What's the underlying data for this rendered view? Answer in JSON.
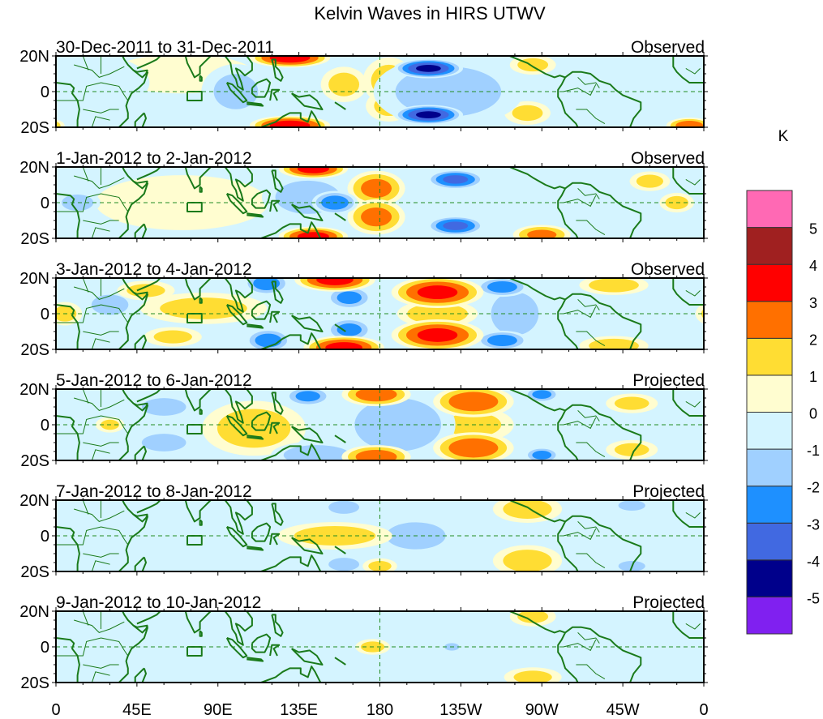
{
  "chart_data": {
    "type": "heatmap",
    "title": "Kelvin Waves in HIRS UTWV",
    "units": "K",
    "xlabel": "",
    "ylabel": "",
    "x_range_deg_east": [
      0,
      360
    ],
    "y_range_deg": [
      -20,
      20
    ],
    "x_ticks": [
      {
        "value": 0,
        "label": "0"
      },
      {
        "value": 45,
        "label": "45E"
      },
      {
        "value": 90,
        "label": "90E"
      },
      {
        "value": 135,
        "label": "135E"
      },
      {
        "value": 180,
        "label": "180"
      },
      {
        "value": 225,
        "label": "135W"
      },
      {
        "value": 270,
        "label": "90W"
      },
      {
        "value": 315,
        "label": "45W"
      },
      {
        "value": 360,
        "label": "0"
      }
    ],
    "y_ticks": [
      {
        "value": 20,
        "label": "20N"
      },
      {
        "value": 0,
        "label": "0"
      },
      {
        "value": -20,
        "label": "20S"
      }
    ],
    "reference_lines": {
      "equator": 0,
      "dateline": 180,
      "style": "dashed",
      "color": "#228B22"
    },
    "coastline_color": "#1a7a1a",
    "colorbar": {
      "label": "K",
      "levels": [
        -5,
        -4,
        -3,
        -2,
        -1,
        0,
        1,
        2,
        3,
        4,
        5
      ],
      "tick_labels": [
        "5",
        "4",
        "3",
        "2",
        "1",
        "0",
        "-1",
        "-2",
        "-3",
        "-4",
        "-5"
      ],
      "colors_low_to_high": [
        "#8020F0",
        "#00008B",
        "#4169E1",
        "#1E90FF",
        "#A0D0FF",
        "#D4F4FF",
        "#FFFDD0",
        "#FFDD33",
        "#FF7000",
        "#FF0000",
        "#A02020",
        "#FF69B4"
      ]
    },
    "panels": [
      {
        "date_range": "30-Dec-2011 to 31-Dec-2011",
        "status": "Observed",
        "anomalies": [
          {
            "lon": 130,
            "lat": 19,
            "value": 3.5,
            "wlon": 14,
            "wlat": 5
          },
          {
            "lon": 130,
            "lat": -19,
            "value": 3.5,
            "wlon": 14,
            "wlat": 5
          },
          {
            "lon": 160,
            "lat": 4,
            "value": 1.3,
            "wlon": 8,
            "wlat": 9
          },
          {
            "lon": 185,
            "lat": 6,
            "value": 1.4,
            "wlon": 9,
            "wlat": 12
          },
          {
            "lon": 185,
            "lat": -8,
            "value": 1.2,
            "wlon": 8,
            "wlat": 8
          },
          {
            "lon": 207,
            "lat": 13,
            "value": -4.1,
            "wlon": 12,
            "wlat": 5
          },
          {
            "lon": 207,
            "lat": -13,
            "value": -4.1,
            "wlon": 12,
            "wlat": 5
          },
          {
            "lon": 225,
            "lat": 0,
            "value": 0.5,
            "wlon": 9,
            "wlat": 6
          },
          {
            "lon": 218,
            "lat": 0,
            "value": -1.5,
            "wlon": 26,
            "wlat": 18
          },
          {
            "lon": 262,
            "lat": -12,
            "value": 1.3,
            "wlon": 8,
            "wlat": 6
          },
          {
            "lon": 265,
            "lat": 15,
            "value": 1.3,
            "wlon": 8,
            "wlat": 5
          },
          {
            "lon": 70,
            "lat": 10,
            "value": 0.5,
            "wlon": 25,
            "wlat": 10
          },
          {
            "lon": 100,
            "lat": 0,
            "value": -1.2,
            "wlon": 12,
            "wlat": 14
          },
          {
            "lon": 20,
            "lat": 5,
            "value": -0.6,
            "wlon": 20,
            "wlat": 14
          },
          {
            "lon": 352,
            "lat": -19,
            "value": 2.6,
            "wlon": 8,
            "wlat": 4
          },
          {
            "lon": 350,
            "lat": 5,
            "value": -0.6,
            "wlon": 12,
            "wlat": 12
          }
        ]
      },
      {
        "date_range": "1-Jan-2012 to 2-Jan-2012",
        "status": "Observed",
        "anomalies": [
          {
            "lon": 143,
            "lat": 19,
            "value": 3.3,
            "wlon": 12,
            "wlat": 5
          },
          {
            "lon": 143,
            "lat": -19,
            "value": 3.3,
            "wlon": 12,
            "wlat": 5
          },
          {
            "lon": 155,
            "lat": 0,
            "value": -2.6,
            "wlon": 8,
            "wlat": 6
          },
          {
            "lon": 140,
            "lat": 3,
            "value": -1.5,
            "wlon": 16,
            "wlat": 12
          },
          {
            "lon": 178,
            "lat": 8,
            "value": 2.3,
            "wlon": 10,
            "wlat": 9
          },
          {
            "lon": 178,
            "lat": -8,
            "value": 2.3,
            "wlon": 10,
            "wlat": 9
          },
          {
            "lon": 222,
            "lat": 13,
            "value": -3.2,
            "wlon": 10,
            "wlat": 5
          },
          {
            "lon": 222,
            "lat": -13,
            "value": -3.2,
            "wlon": 10,
            "wlat": 5
          },
          {
            "lon": 240,
            "lat": 0,
            "value": -0.7,
            "wlon": 12,
            "wlat": 14
          },
          {
            "lon": 270,
            "lat": -18,
            "value": 2.2,
            "wlon": 10,
            "wlat": 5
          },
          {
            "lon": 330,
            "lat": 12,
            "value": 1.3,
            "wlon": 7,
            "wlat": 5
          },
          {
            "lon": 345,
            "lat": 0,
            "value": 1.3,
            "wlon": 6,
            "wlat": 5
          },
          {
            "lon": 12,
            "lat": 0,
            "value": -1.4,
            "wlon": 8,
            "wlat": 6
          },
          {
            "lon": 70,
            "lat": 0,
            "value": 0.4,
            "wlon": 30,
            "wlat": 14
          }
        ]
      },
      {
        "date_range": "3-Jan-2012 to 4-Jan-2012",
        "status": "Observed",
        "anomalies": [
          {
            "lon": 155,
            "lat": 19,
            "value": 3.3,
            "wlon": 14,
            "wlat": 6
          },
          {
            "lon": 160,
            "lat": -19,
            "value": 3.3,
            "wlon": 14,
            "wlat": 6
          },
          {
            "lon": 117,
            "lat": 17,
            "value": -2.5,
            "wlon": 8,
            "wlat": 6
          },
          {
            "lon": 118,
            "lat": -15,
            "value": -2.5,
            "wlon": 8,
            "wlat": 6
          },
          {
            "lon": 163,
            "lat": 9,
            "value": -2.3,
            "wlon": 8,
            "wlat": 6
          },
          {
            "lon": 163,
            "lat": -9,
            "value": -2.3,
            "wlon": 8,
            "wlat": 6
          },
          {
            "lon": 212,
            "lat": 12,
            "value": 3.2,
            "wlon": 16,
            "wlat": 8
          },
          {
            "lon": 212,
            "lat": -12,
            "value": 3.2,
            "wlon": 16,
            "wlat": 8
          },
          {
            "lon": 212,
            "lat": 0,
            "value": 1.8,
            "wlon": 14,
            "wlat": 7
          },
          {
            "lon": 248,
            "lat": 15,
            "value": -2.5,
            "wlon": 9,
            "wlat": 5
          },
          {
            "lon": 248,
            "lat": -15,
            "value": -2.5,
            "wlon": 9,
            "wlat": 5
          },
          {
            "lon": 255,
            "lat": 0,
            "value": -1.4,
            "wlon": 12,
            "wlat": 16
          },
          {
            "lon": 82,
            "lat": 3,
            "value": 1.4,
            "wlon": 22,
            "wlat": 8
          },
          {
            "lon": 50,
            "lat": 13,
            "value": 1.3,
            "wlon": 10,
            "wlat": 5
          },
          {
            "lon": 65,
            "lat": -13,
            "value": 1.3,
            "wlon": 10,
            "wlat": 5
          },
          {
            "lon": 5,
            "lat": 0,
            "value": 1.3,
            "wlon": 6,
            "wlat": 6
          },
          {
            "lon": 310,
            "lat": 16,
            "value": 1.6,
            "wlon": 12,
            "wlat": 5
          },
          {
            "lon": 310,
            "lat": -18,
            "value": 1.6,
            "wlon": 12,
            "wlat": 5
          },
          {
            "lon": 30,
            "lat": 5,
            "value": -1.2,
            "wlon": 10,
            "wlat": 8
          }
        ]
      },
      {
        "date_range": "5-Jan-2012 to 6-Jan-2012",
        "status": "Projected",
        "anomalies": [
          {
            "lon": 110,
            "lat": -2,
            "value": 1.5,
            "wlon": 18,
            "wlat": 14
          },
          {
            "lon": 178,
            "lat": 17,
            "value": 2.6,
            "wlon": 12,
            "wlat": 6
          },
          {
            "lon": 178,
            "lat": -18,
            "value": 2.6,
            "wlon": 12,
            "wlat": 6
          },
          {
            "lon": 232,
            "lat": 13,
            "value": 2.7,
            "wlon": 14,
            "wlat": 8
          },
          {
            "lon": 232,
            "lat": -13,
            "value": 2.7,
            "wlon": 14,
            "wlat": 8
          },
          {
            "lon": 232,
            "lat": 0,
            "value": 1.4,
            "wlon": 14,
            "wlat": 9
          },
          {
            "lon": 190,
            "lat": 0,
            "value": -1.8,
            "wlon": 20,
            "wlat": 18
          },
          {
            "lon": 140,
            "lat": 16,
            "value": -2.3,
            "wlon": 8,
            "wlat": 5
          },
          {
            "lon": 145,
            "lat": -17,
            "value": -1.6,
            "wlon": 16,
            "wlat": 7
          },
          {
            "lon": 270,
            "lat": 17,
            "value": -2.4,
            "wlon": 6,
            "wlat": 4
          },
          {
            "lon": 270,
            "lat": -17,
            "value": -2.4,
            "wlon": 6,
            "wlat": 4
          },
          {
            "lon": 320,
            "lat": 12,
            "value": 1.3,
            "wlon": 9,
            "wlat": 5
          },
          {
            "lon": 320,
            "lat": -14,
            "value": 1.3,
            "wlon": 9,
            "wlat": 5
          },
          {
            "lon": 60,
            "lat": 10,
            "value": -1.2,
            "wlon": 12,
            "wlat": 7
          },
          {
            "lon": 60,
            "lat": -10,
            "value": -1.2,
            "wlon": 12,
            "wlat": 7
          },
          {
            "lon": 30,
            "lat": 0,
            "value": 1.2,
            "wlon": 5,
            "wlat": 4
          }
        ]
      },
      {
        "date_range": "7-Jan-2012 to 8-Jan-2012",
        "status": "Projected",
        "anomalies": [
          {
            "lon": 155,
            "lat": 0,
            "value": 1.5,
            "wlon": 20,
            "wlat": 7
          },
          {
            "lon": 262,
            "lat": 15,
            "value": 1.5,
            "wlon": 12,
            "wlat": 7
          },
          {
            "lon": 262,
            "lat": -14,
            "value": 1.5,
            "wlon": 12,
            "wlat": 8
          },
          {
            "lon": 200,
            "lat": 0,
            "value": -1.4,
            "wlon": 15,
            "wlat": 10
          },
          {
            "lon": 160,
            "lat": 16,
            "value": -1.3,
            "wlon": 8,
            "wlat": 5
          },
          {
            "lon": 160,
            "lat": -16,
            "value": -1.3,
            "wlon": 8,
            "wlat": 5
          },
          {
            "lon": 180,
            "lat": -17,
            "value": 1.3,
            "wlon": 6,
            "wlat": 4
          },
          {
            "lon": 320,
            "lat": 17,
            "value": -1.3,
            "wlon": 7,
            "wlat": 4
          },
          {
            "lon": 320,
            "lat": -17,
            "value": -1.3,
            "wlon": 7,
            "wlat": 4
          },
          {
            "lon": 60,
            "lat": 0,
            "value": 0.4,
            "wlon": 10,
            "wlat": 8
          },
          {
            "lon": 80,
            "lat": 0,
            "value": -0.5,
            "wlon": 25,
            "wlat": 16
          }
        ]
      },
      {
        "date_range": "9-Jan-2012 to 10-Jan-2012",
        "status": "Projected",
        "anomalies": [
          {
            "lon": 176,
            "lat": 0,
            "value": 1.4,
            "wlon": 6,
            "wlat": 4
          },
          {
            "lon": 220,
            "lat": 0,
            "value": -1.2,
            "wlon": 4,
            "wlat": 3
          },
          {
            "lon": 220,
            "lat": 0,
            "value": -0.5,
            "wlon": 25,
            "wlat": 18
          },
          {
            "lon": 265,
            "lat": 17,
            "value": 1.3,
            "wlon": 8,
            "wlat": 5
          },
          {
            "lon": 265,
            "lat": -17,
            "value": 1.3,
            "wlon": 10,
            "wlat": 5
          },
          {
            "lon": 90,
            "lat": 0,
            "value": -0.5,
            "wlon": 30,
            "wlat": 14
          },
          {
            "lon": 310,
            "lat": 12,
            "value": -0.5,
            "wlon": 12,
            "wlat": 6
          },
          {
            "lon": 310,
            "lat": -12,
            "value": -0.5,
            "wlon": 12,
            "wlat": 6
          }
        ]
      }
    ]
  }
}
